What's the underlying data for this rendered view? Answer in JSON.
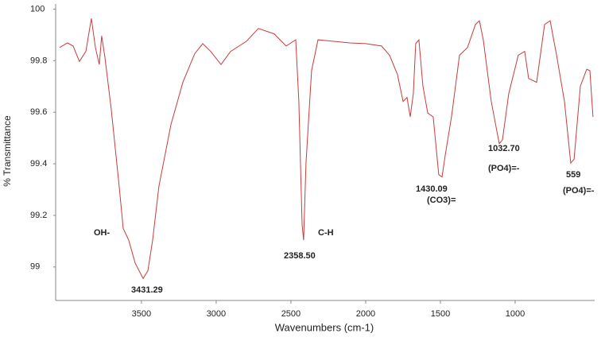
{
  "chart_data": {
    "type": "line",
    "x_label": "Wavenumbers (cm-1)",
    "y_label": "% Transmittance",
    "xlim": [
      4074,
      468
    ],
    "ylim": [
      98.87,
      100.02
    ],
    "xticks": [
      3500,
      3000,
      2500,
      2000,
      1500,
      1000
    ],
    "yticks": [
      99,
      99.2,
      99.4,
      99.6,
      99.8,
      100
    ],
    "series": [
      {
        "name": "Transmittance",
        "color": "#c83c3c",
        "x": [
          4048,
          3995,
          3957,
          3915,
          3872,
          3835,
          3808,
          3782,
          3766,
          3745,
          3702,
          3649,
          3622,
          3585,
          3542,
          3489,
          3457,
          3425,
          3383,
          3303,
          3223,
          3144,
          3090,
          3037,
          2968,
          2904,
          2798,
          2718,
          2612,
          2532,
          2468,
          2447,
          2425,
          2415,
          2399,
          2362,
          2319,
          2213,
          2106,
          2000,
          1894,
          1840,
          1787,
          1750,
          1723,
          1702,
          1681,
          1665,
          1644,
          1617,
          1585,
          1548,
          1511,
          1489,
          1468,
          1426,
          1372,
          1319,
          1266,
          1239,
          1213,
          1160,
          1106,
          1085,
          1043,
          979,
          936,
          910,
          856,
          803,
          766,
          723,
          670,
          628,
          606,
          564,
          521,
          500,
          479
        ],
        "values": [
          99.851,
          99.869,
          99.857,
          99.797,
          99.836,
          99.964,
          99.851,
          99.785,
          99.896,
          99.815,
          99.612,
          99.313,
          99.149,
          99.104,
          99.015,
          98.955,
          98.985,
          99.104,
          99.313,
          99.552,
          99.716,
          99.827,
          99.866,
          99.836,
          99.785,
          99.836,
          99.875,
          99.925,
          99.904,
          99.857,
          99.881,
          99.642,
          99.164,
          99.104,
          99.403,
          99.761,
          99.881,
          99.875,
          99.869,
          99.866,
          99.857,
          99.821,
          99.746,
          99.642,
          99.657,
          99.582,
          99.672,
          99.866,
          99.881,
          99.701,
          99.597,
          99.582,
          99.358,
          99.349,
          99.433,
          99.582,
          99.821,
          99.851,
          99.94,
          99.955,
          99.881,
          99.642,
          99.478,
          99.493,
          99.672,
          99.821,
          99.836,
          99.731,
          99.716,
          99.94,
          99.955,
          99.821,
          99.642,
          99.403,
          99.418,
          99.701,
          99.767,
          99.761,
          99.582
        ]
      }
    ],
    "annotations": [
      "OH-",
      "3431.29",
      "C-H",
      "2358.50",
      "1430.09",
      "(CO3)=",
      "1032.70",
      "(PO4)=-",
      "559",
      "(PO4)=-"
    ]
  }
}
